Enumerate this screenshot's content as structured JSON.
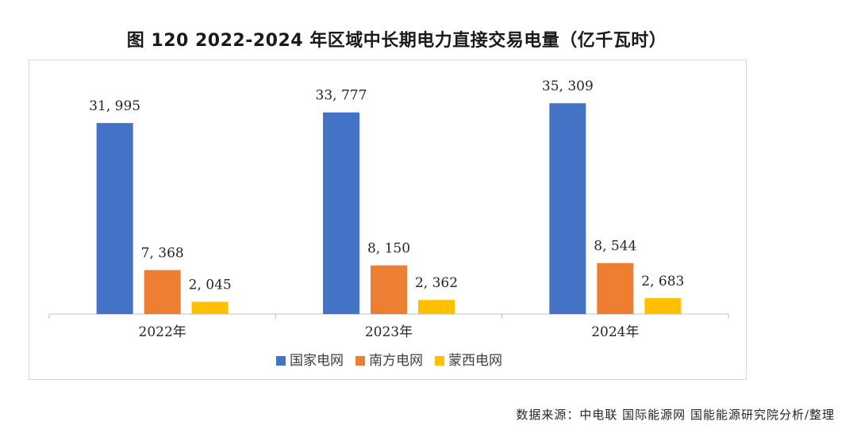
{
  "title": "图 120 2022-2024 年区域中长期电力直接交易电量（亿千瓦时）",
  "source_note": "数据来源：中电联 国际能源网 国能能源研究院分析/整理",
  "colors": {
    "national_grid": "#4472C4",
    "southern_grid": "#ED7D31",
    "mengxi_grid": "#FFC000"
  },
  "chart_data": {
    "type": "bar",
    "categories": [
      "2022年",
      "2023年",
      "2024年"
    ],
    "series": [
      {
        "name": "国家电网",
        "values": [
          31995,
          33777,
          35309
        ],
        "labels": [
          "31, 995",
          "33, 777",
          "35, 309"
        ]
      },
      {
        "name": "南方电网",
        "values": [
          7368,
          8150,
          8544
        ],
        "labels": [
          "7, 368",
          "8, 150",
          "8, 544"
        ]
      },
      {
        "name": "蒙西电网",
        "values": [
          2045,
          2362,
          2683
        ],
        "labels": [
          "2, 045",
          "2, 362",
          "2, 683"
        ]
      }
    ],
    "ylim": [
      0,
      36000
    ],
    "grid": false,
    "legend": "bottom"
  }
}
